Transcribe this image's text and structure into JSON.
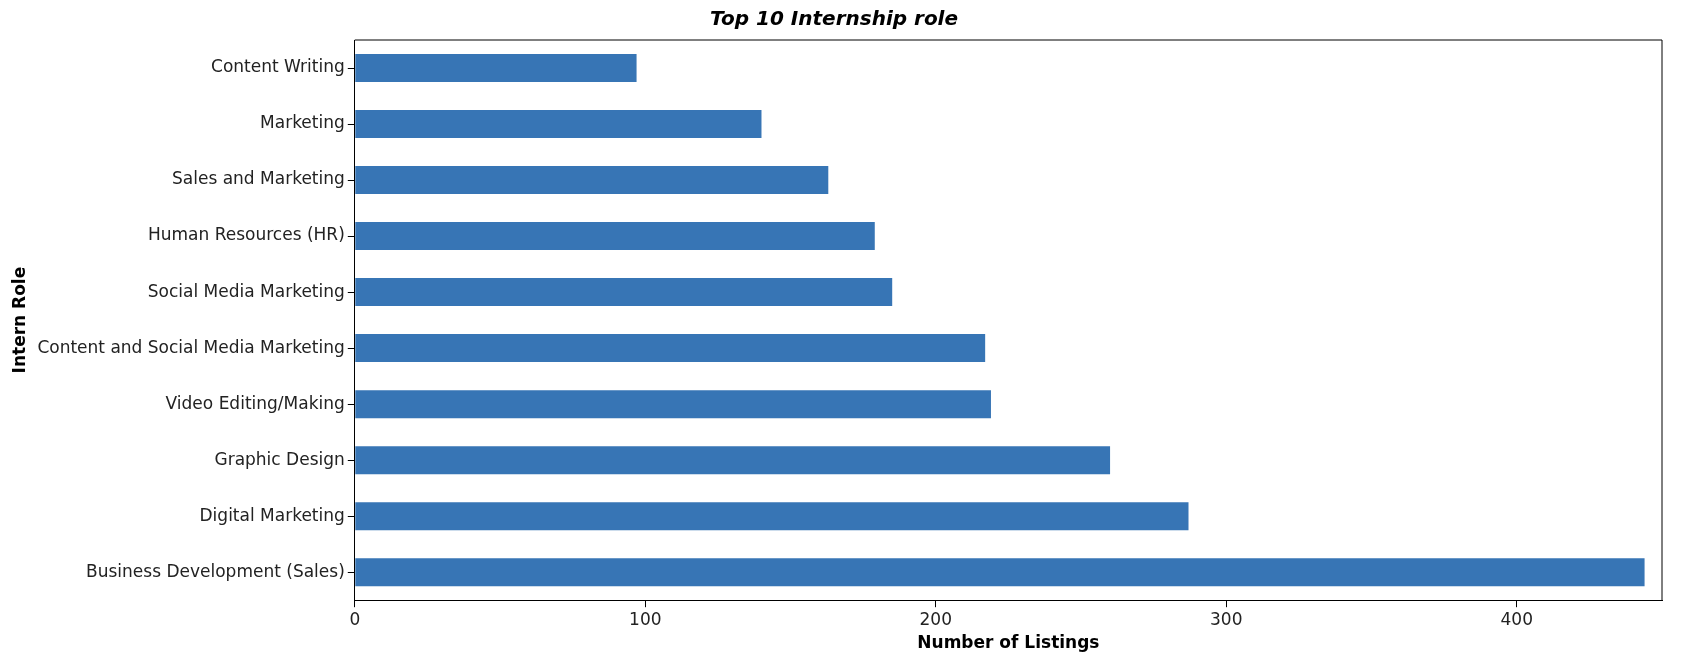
{
  "chart_data": {
    "type": "bar",
    "orientation": "horizontal",
    "title": "Top 10 Internship role",
    "xlabel": "Number of Listings",
    "ylabel": "Intern Role",
    "categories": [
      "Content Writing",
      "Marketing",
      "Sales and Marketing",
      "Human Resources (HR)",
      "Social Media Marketing",
      "Content and Social Media Marketing",
      "Video Editing/Making",
      "Graphic Design",
      "Digital Marketing",
      "Business Development (Sales)"
    ],
    "values": [
      97,
      140,
      163,
      179,
      185,
      217,
      219,
      260,
      287,
      444
    ],
    "color": "#3775b5",
    "xlim": [
      0,
      450
    ],
    "xticks": [
      0,
      100,
      200,
      300,
      400
    ],
    "grid": false,
    "legend": false
  }
}
